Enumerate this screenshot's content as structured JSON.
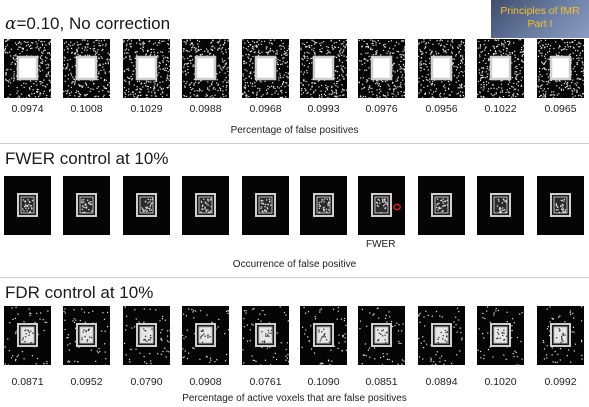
{
  "logo": {
    "line1": "Principles of fMR",
    "line2": "Part I"
  },
  "sections": [
    {
      "id": "no-correction",
      "title_symbol": "α",
      "title_rest": "=0.10, No correction",
      "panel_style": "noisy",
      "values": [
        "0.0974",
        "0.1008",
        "0.1029",
        "0.0988",
        "0.0968",
        "0.0993",
        "0.0976",
        "0.0956",
        "0.1022",
        "0.0965"
      ],
      "caption": "Percentage of false positives"
    },
    {
      "id": "fwer",
      "title_symbol": "",
      "title_rest": "FWER control at 10%",
      "panel_style": "clean",
      "values": [],
      "highlight_index": 6,
      "highlight_label": "FWER",
      "highlight_color": "#e0201a",
      "caption": "Occurrence of false positive"
    },
    {
      "id": "fdr",
      "title_symbol": "",
      "title_rest": "FDR control at 10%",
      "panel_style": "sparse",
      "values": [
        "0.0871",
        "0.0952",
        "0.0790",
        "0.0908",
        "0.0761",
        "0.1090",
        "0.0851",
        "0.0894",
        "0.1020",
        "0.0992"
      ],
      "caption": "Percentage of active voxels that are false positives"
    }
  ]
}
